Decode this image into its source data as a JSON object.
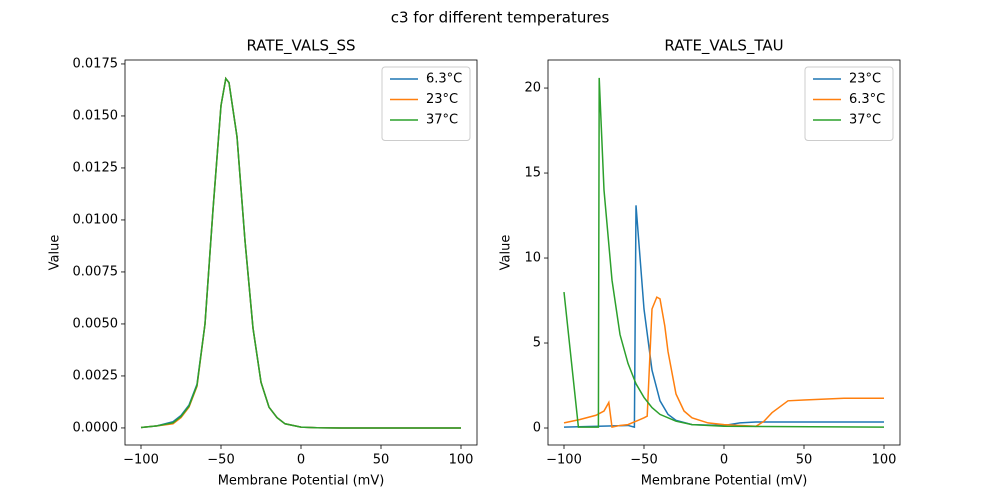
{
  "title": "c3 for different temperatures",
  "chart_data": [
    {
      "type": "line",
      "title": "RATE_VALS_SS",
      "xlabel": "Membrane Potential (mV)",
      "ylabel": "Value",
      "x": [
        -100,
        -90,
        -80,
        -75,
        -70,
        -65,
        -60,
        -55,
        -50,
        -47,
        -45,
        -40,
        -35,
        -30,
        -25,
        -20,
        -15,
        -10,
        0,
        10,
        25,
        50,
        75,
        100
      ],
      "series": [
        {
          "name": "6.3°C",
          "color": "#1f77b4",
          "values": [
            2e-05,
            0.0001,
            0.0003,
            0.0006,
            0.0011,
            0.0021,
            0.005,
            0.0105,
            0.0155,
            0.0168,
            0.0166,
            0.014,
            0.009,
            0.0048,
            0.0022,
            0.001,
            0.0005,
            0.0002,
            4e-05,
            1e-05,
            0,
            0,
            0,
            0
          ]
        },
        {
          "name": "23°C",
          "color": "#ff7f0e",
          "values": [
            2e-05,
            0.0001,
            0.0002,
            0.0005,
            0.001,
            0.002,
            0.005,
            0.0105,
            0.0155,
            0.0168,
            0.0166,
            0.014,
            0.009,
            0.0048,
            0.0022,
            0.001,
            0.0005,
            0.0002,
            4e-05,
            1e-05,
            0,
            0,
            0,
            0
          ]
        },
        {
          "name": "37°C",
          "color": "#2ca02c",
          "values": [
            2e-05,
            0.0001,
            0.00025,
            0.00055,
            0.00105,
            0.00205,
            0.005,
            0.0105,
            0.0155,
            0.0168,
            0.0166,
            0.014,
            0.009,
            0.0048,
            0.0022,
            0.001,
            0.0005,
            0.0002,
            4e-05,
            1e-05,
            0,
            0,
            0,
            0
          ]
        }
      ],
      "xlim": [
        -110,
        110
      ],
      "xticks": [
        {
          "value": -100,
          "label": "−100"
        },
        {
          "value": -50,
          "label": "−50"
        },
        0,
        50,
        100
      ],
      "ylim": [
        -0.00082,
        0.01769
      ],
      "yticks": [
        {
          "value": 0,
          "label": "0.0000"
        },
        {
          "value": 0.0025,
          "label": "0.0025"
        },
        {
          "value": 0.005,
          "label": "0.0050"
        },
        {
          "value": 0.0075,
          "label": "0.0075"
        },
        {
          "value": 0.01,
          "label": "0.0100"
        },
        {
          "value": 0.0125,
          "label": "0.0125"
        },
        {
          "value": 0.015,
          "label": "0.0150"
        },
        {
          "value": 0.0175,
          "label": "0.0175"
        }
      ],
      "legend": "upper right",
      "grid": false
    },
    {
      "type": "line",
      "title": "RATE_VALS_TAU",
      "xlabel": "Membrane Potential (mV)",
      "ylabel": "Value",
      "series": [
        {
          "name": "23°C",
          "color": "#1f77b4",
          "x": [
            -100,
            -60,
            -56,
            -55,
            -50,
            -45,
            -40,
            -35,
            -30,
            -20,
            0,
            10,
            20,
            100
          ],
          "values": [
            0.05,
            0.15,
            0.05,
            13.1,
            7.0,
            3.4,
            1.6,
            0.8,
            0.45,
            0.2,
            0.15,
            0.3,
            0.35,
            0.35
          ]
        },
        {
          "name": "6.3°C",
          "color": "#ff7f0e",
          "x": [
            -100,
            -90,
            -80,
            -75,
            -72,
            -70,
            -65,
            -60,
            -50,
            -48,
            -45,
            -42,
            -40,
            -37,
            -35,
            -30,
            -25,
            -20,
            -10,
            0,
            10,
            20,
            25,
            30,
            40,
            50,
            75,
            100
          ],
          "values": [
            0.3,
            0.5,
            0.75,
            1.0,
            1.5,
            0.05,
            0.15,
            0.2,
            0.6,
            0.7,
            7.0,
            7.7,
            7.6,
            6.0,
            4.5,
            2.0,
            1.0,
            0.6,
            0.3,
            0.2,
            0.15,
            0.1,
            0.4,
            0.9,
            1.6,
            1.65,
            1.75,
            1.75
          ]
        },
        {
          "name": "37°C",
          "color": "#2ca02c",
          "x": [
            -100,
            -91,
            -85,
            -78.5,
            -78,
            -75,
            -70,
            -65,
            -60,
            -55,
            -50,
            -45,
            -40,
            -30,
            -20,
            0,
            100
          ],
          "values": [
            8.0,
            0.05,
            0.05,
            0.05,
            20.6,
            14.0,
            8.7,
            5.5,
            3.8,
            2.6,
            1.8,
            1.2,
            0.8,
            0.4,
            0.2,
            0.1,
            0.05
          ]
        }
      ],
      "xlim": [
        -110,
        110
      ],
      "xticks": [
        {
          "value": -100,
          "label": "−100"
        },
        {
          "value": -50,
          "label": "−50"
        },
        0,
        50,
        100
      ],
      "ylim": [
        -1.0,
        21.65
      ],
      "yticks": [
        0,
        5,
        10,
        15,
        20
      ],
      "legend": "upper right",
      "grid": false
    }
  ]
}
